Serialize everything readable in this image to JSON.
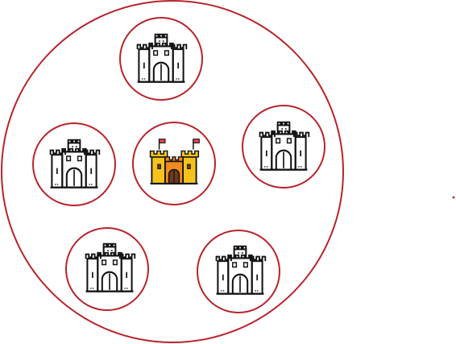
{
  "colors": {
    "ring": "#b7242b",
    "outline": "#111111",
    "gold": "#f6c21c",
    "orange": "#f28b1e",
    "door": "#6b3a1e",
    "flag": "#e8454f",
    "white": "#ffffff"
  },
  "diagram": {
    "outer_circle": "outer-circle",
    "center_node": {
      "name": "center-castle",
      "icon": "castle-gold-icon",
      "style": "colored"
    },
    "satellites": [
      {
        "name": "castle-top",
        "icon": "castle-outline-icon"
      },
      {
        "name": "castle-right",
        "icon": "castle-outline-icon"
      },
      {
        "name": "castle-bottom-right",
        "icon": "castle-outline-icon"
      },
      {
        "name": "castle-bottom-left",
        "icon": "castle-outline-icon"
      },
      {
        "name": "castle-left",
        "icon": "castle-outline-icon"
      }
    ],
    "stray_dot": "small-red-dot"
  }
}
